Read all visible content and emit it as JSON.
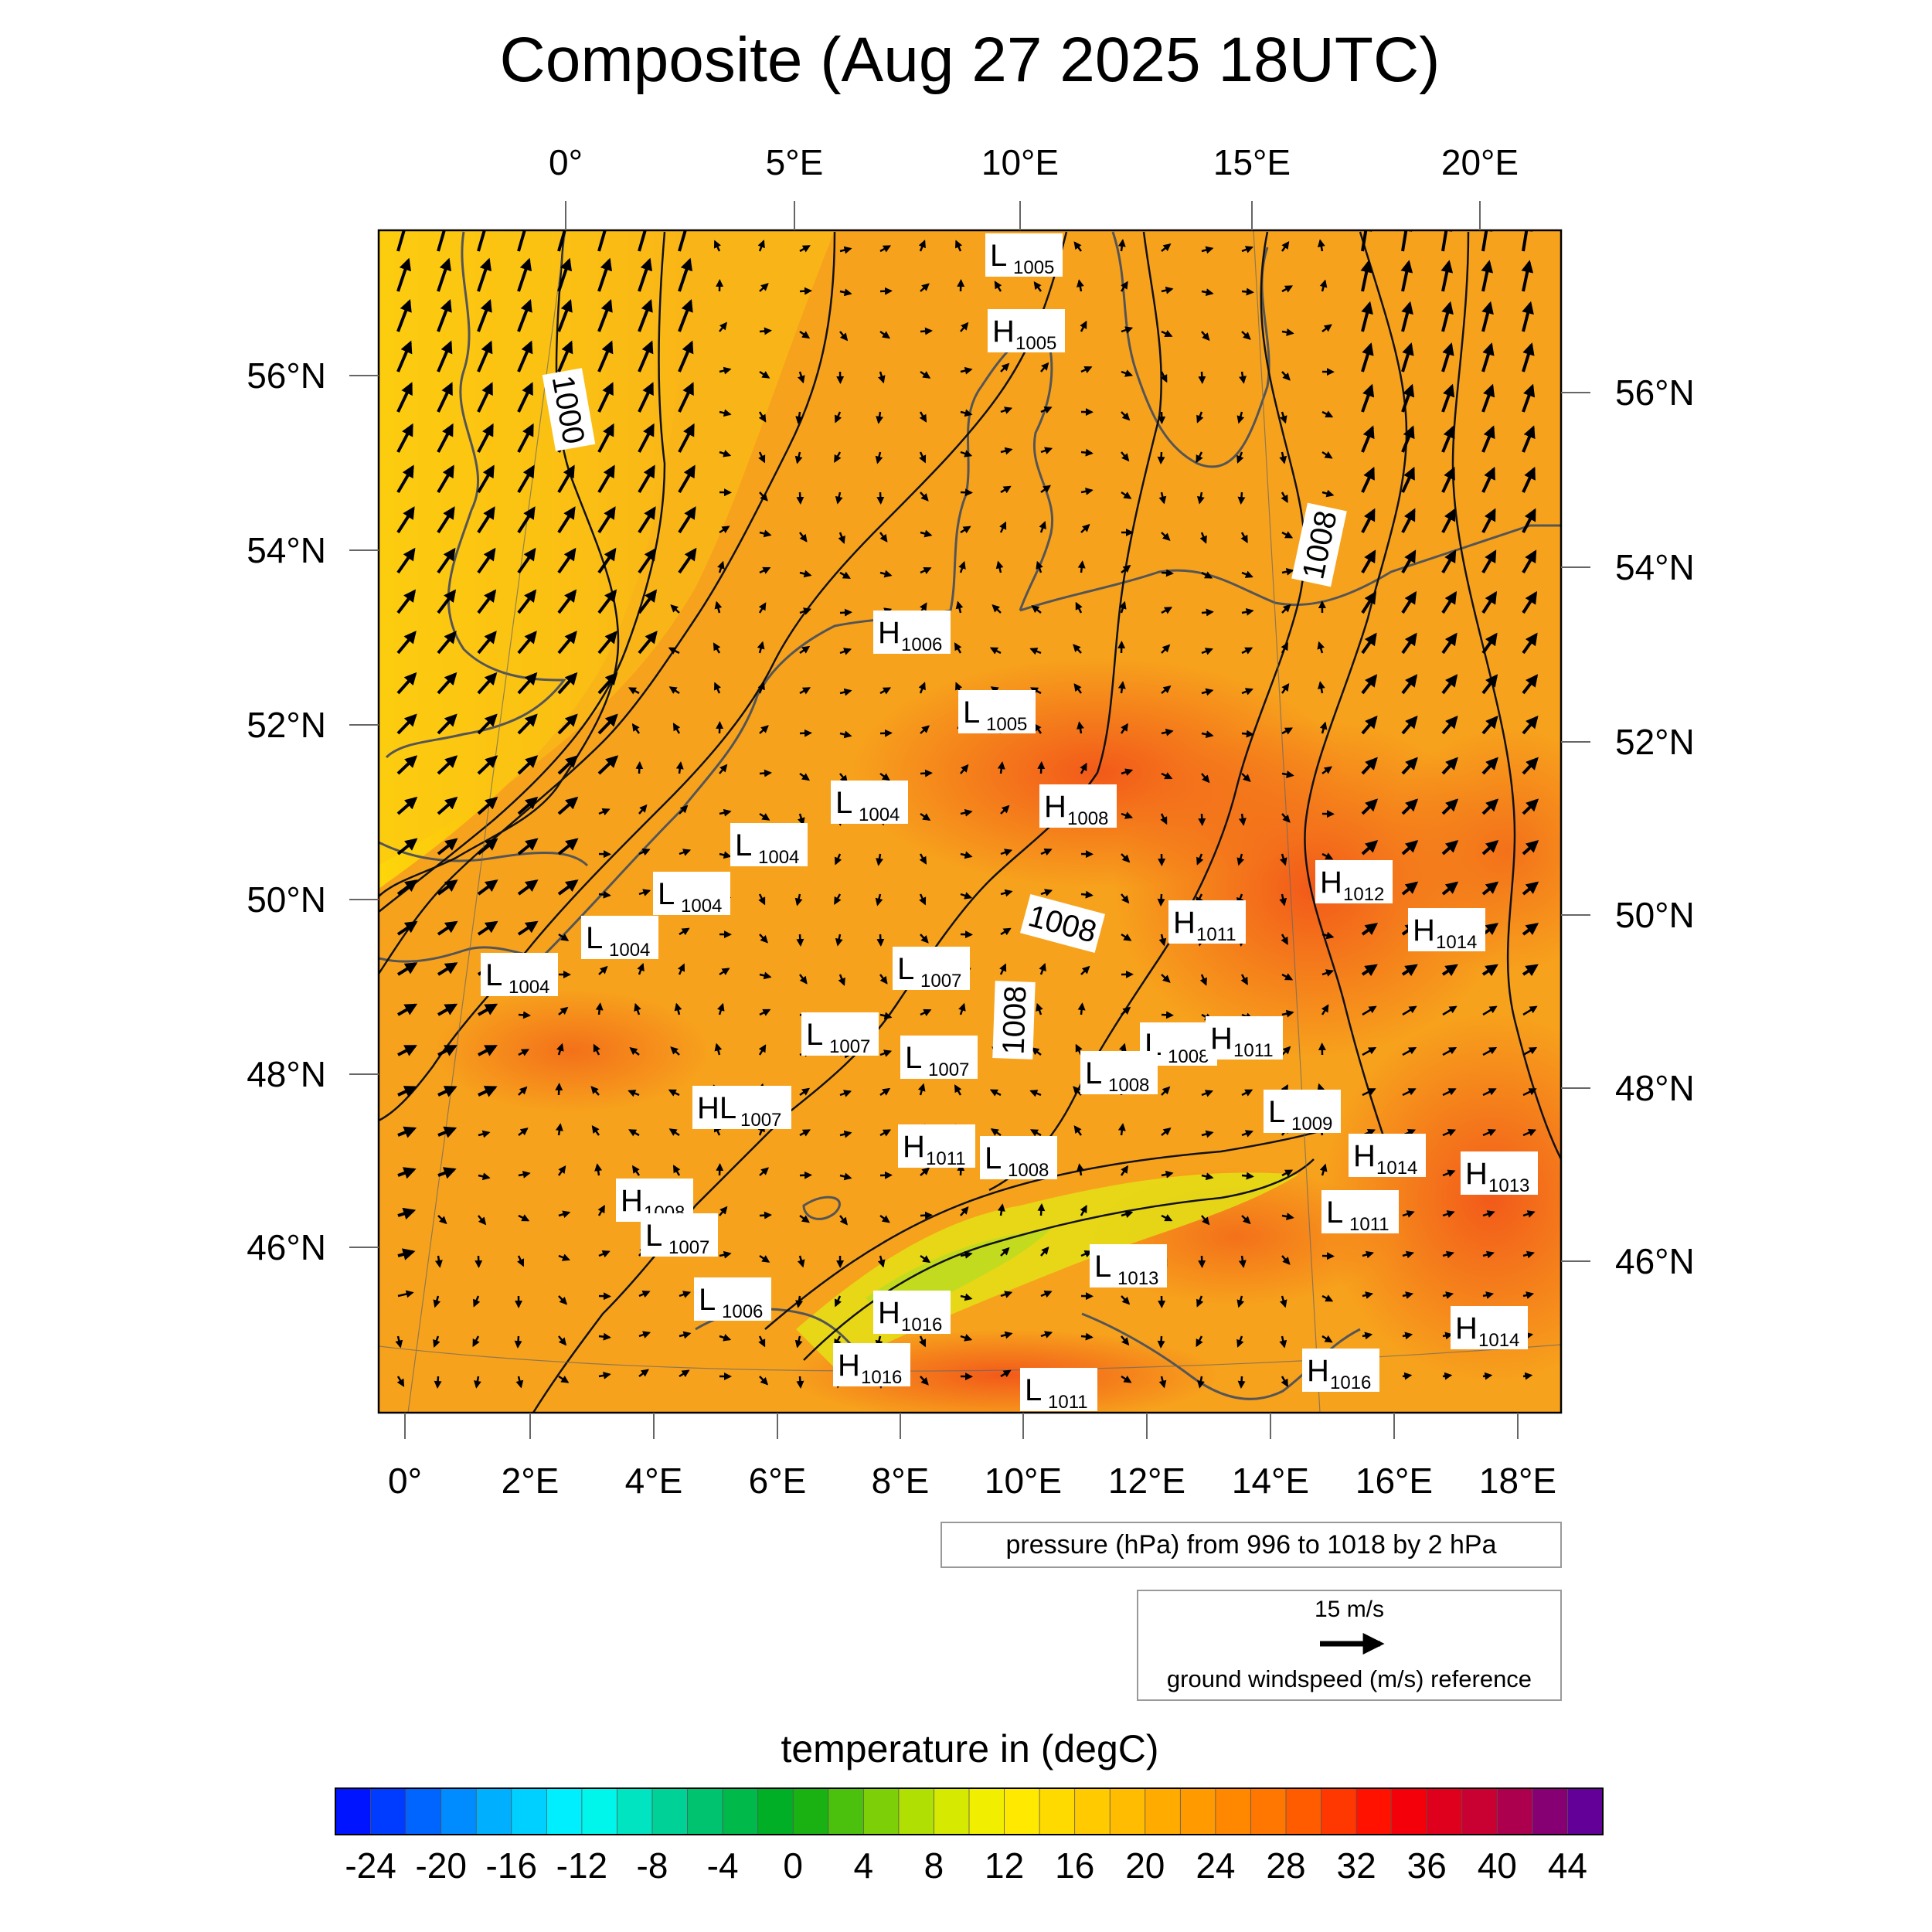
{
  "title": "Composite (Aug 27 2025 18UTC)",
  "top_axis_labels": [
    "0°",
    "5°E",
    "10°E",
    "15°E",
    "20°E"
  ],
  "bottom_axis_labels": [
    "0°",
    "2°E",
    "4°E",
    "6°E",
    "8°E",
    "10°E",
    "12°E",
    "14°E",
    "16°E",
    "18°E"
  ],
  "left_axis_labels": [
    "56°N",
    "54°N",
    "52°N",
    "50°N",
    "48°N",
    "46°N"
  ],
  "right_axis_labels": [
    "56°N",
    "54°N",
    "52°N",
    "50°N",
    "48°N",
    "46°N"
  ],
  "contour_labels": [
    "1000",
    "1008",
    "1008",
    "1008"
  ],
  "pressure_centers": [
    {
      "t": "L",
      "v": "1005"
    },
    {
      "t": "H",
      "v": "1005"
    },
    {
      "t": "H",
      "v": "1006"
    },
    {
      "t": "L",
      "v": "1005"
    },
    {
      "t": "L",
      "v": "1004"
    },
    {
      "t": "H",
      "v": "1008"
    },
    {
      "t": "L",
      "v": "1004"
    },
    {
      "t": "L",
      "v": "1004"
    },
    {
      "t": "L",
      "v": "1004"
    },
    {
      "t": "L",
      "v": "1004"
    },
    {
      "t": "H",
      "v": "1012"
    },
    {
      "t": "H",
      "v": "1011"
    },
    {
      "t": "H",
      "v": "1014"
    },
    {
      "t": "L",
      "v": "1007"
    },
    {
      "t": "L",
      "v": "1007"
    },
    {
      "t": "L",
      "v": "1007"
    },
    {
      "t": "L",
      "v": "1008"
    },
    {
      "t": "H",
      "v": "1011"
    },
    {
      "t": "L",
      "v": "1008"
    },
    {
      "t": "HL",
      "v": "1007"
    },
    {
      "t": "L",
      "v": "1009"
    },
    {
      "t": "H",
      "v": "1011"
    },
    {
      "t": "L",
      "v": "1008"
    },
    {
      "t": "H",
      "v": "1014"
    },
    {
      "t": "H",
      "v": "1013"
    },
    {
      "t": "H",
      "v": "1008"
    },
    {
      "t": "L",
      "v": "1007"
    },
    {
      "t": "L",
      "v": "1011"
    },
    {
      "t": "L",
      "v": "1013"
    },
    {
      "t": "L",
      "v": "1006"
    },
    {
      "t": "H",
      "v": "1016"
    },
    {
      "t": "H",
      "v": "1016"
    },
    {
      "t": "H",
      "v": "1016"
    },
    {
      "t": "H",
      "v": "1014"
    },
    {
      "t": "L",
      "v": "1011"
    }
  ],
  "pressure_legend": "pressure (hPa) from 996 to 1018 by 2 hPa",
  "wind_reference": {
    "speed_label": "15 m/s",
    "caption": "ground windspeed (m/s) reference"
  },
  "colorbar": {
    "title": "temperature in (degC)",
    "min": -26,
    "max": 46,
    "step": 2,
    "tick_labels": [
      "-24",
      "-20",
      "-16",
      "-12",
      "-8",
      "-4",
      "0",
      "4",
      "8",
      "12",
      "16",
      "20",
      "24",
      "28",
      "32",
      "36",
      "40",
      "44"
    ]
  },
  "colors": {
    "warm_field": "#f7a21c",
    "cold_north": "#fbd30c",
    "hot_core": "#f3641a",
    "alpine": "#d8e21a",
    "coast": "#555555",
    "contour": "#111111"
  }
}
